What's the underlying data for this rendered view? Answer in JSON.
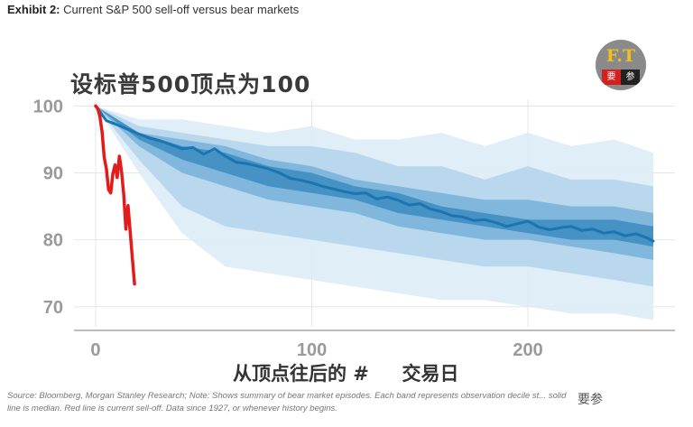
{
  "exhibit": {
    "label": "Exhibit 2:",
    "text": "Current S&P 500 sell-off versus bear markets"
  },
  "overlay": {
    "title_cn": "设标普500顶点为100",
    "xlabel_cn": "从顶点往后的 #     交易日"
  },
  "source_note": "Source: Bloomberg, Morgan Stanley Research; Note: Shows summary of bear market episodes. Each band represents observation decile st... solid line is median. Red line is current sell-off. Data since 1927, or whenever history begins.",
  "logo": {
    "letters": "F.T",
    "left": "要",
    "right": "参",
    "color_red": "#d32020",
    "color_gold": "#f0c020"
  },
  "watermark": "要参",
  "chart_data": {
    "type": "line",
    "title": "",
    "xlabel": "",
    "ylabel": "",
    "xlim": [
      -10,
      268
    ],
    "ylim": [
      67,
      101
    ],
    "xticks": [
      0,
      100,
      200
    ],
    "yticks": [
      70,
      80,
      90,
      100
    ],
    "grid": true,
    "colors": {
      "median": "#1a75b0",
      "band_inner": "#3f8ec2",
      "band_mid": "#7cb4da",
      "band_outer": "#b5d5ec",
      "band_outermost": "#ddecf7",
      "current": "#e21b1b"
    },
    "bands": [
      {
        "name": "decile band 1",
        "x": [
          0,
          20,
          40,
          60,
          80,
          100,
          120,
          140,
          160,
          180,
          200,
          220,
          240,
          258
        ],
        "upper": [
          100,
          98,
          98,
          97,
          96,
          97,
          95,
          95,
          96,
          94,
          96,
          94,
          95,
          93
        ],
        "lower": [
          100,
          90,
          81,
          76,
          75,
          74,
          73,
          72,
          71,
          71,
          70,
          69,
          69,
          68
        ]
      },
      {
        "name": "decile band 2",
        "x": [
          0,
          20,
          40,
          60,
          80,
          100,
          120,
          140,
          160,
          180,
          200,
          220,
          240,
          258
        ],
        "upper": [
          100,
          97,
          96,
          95,
          94,
          94,
          93,
          91,
          91,
          89,
          91,
          89,
          89,
          88
        ],
        "lower": [
          100,
          92,
          85,
          82,
          81,
          80,
          79,
          78,
          77,
          76,
          76,
          75,
          74,
          73
        ]
      },
      {
        "name": "decile band 3",
        "x": [
          0,
          20,
          40,
          60,
          80,
          100,
          120,
          140,
          160,
          180,
          200,
          220,
          240,
          258
        ],
        "upper": [
          100,
          96,
          95,
          94,
          92,
          91,
          89,
          88,
          87,
          86,
          86,
          85,
          85,
          84
        ],
        "lower": [
          100,
          94,
          90,
          88,
          86,
          85,
          84,
          82,
          81,
          80,
          80,
          79,
          78,
          77
        ]
      },
      {
        "name": "decile band 4",
        "x": [
          0,
          20,
          40,
          60,
          80,
          100,
          120,
          140,
          160,
          180,
          200,
          220,
          240,
          258
        ],
        "upper": [
          100,
          96,
          94,
          93,
          91,
          90,
          88,
          87,
          85,
          84,
          83,
          83,
          83,
          82
        ],
        "lower": [
          100,
          95,
          92,
          90,
          88,
          87,
          86,
          84,
          83,
          82,
          81,
          80,
          80,
          79
        ]
      }
    ],
    "series": [
      {
        "name": "median",
        "x": [
          0,
          5,
          10,
          15,
          20,
          25,
          30,
          35,
          40,
          45,
          50,
          55,
          60,
          65,
          70,
          75,
          80,
          85,
          90,
          95,
          100,
          105,
          110,
          115,
          120,
          125,
          130,
          135,
          140,
          145,
          150,
          155,
          160,
          165,
          170,
          175,
          180,
          185,
          190,
          195,
          200,
          205,
          210,
          215,
          220,
          225,
          230,
          235,
          240,
          245,
          250,
          255,
          258
        ],
        "y": [
          100,
          97.8,
          97.2,
          96.5,
          95.8,
          95.2,
          94.8,
          94.2,
          93.6,
          93.8,
          92.8,
          93.6,
          92.5,
          91.6,
          91.4,
          91.0,
          90.6,
          90.0,
          89.2,
          88.9,
          88.5,
          88.0,
          87.6,
          87.2,
          86.9,
          87.0,
          86.1,
          86.4,
          85.9,
          85.2,
          85.4,
          84.6,
          84.2,
          83.6,
          83.4,
          82.9,
          83.0,
          82.6,
          82.0,
          82.4,
          82.8,
          81.9,
          81.5,
          81.8,
          82.0,
          81.4,
          81.6,
          81.0,
          81.2,
          80.6,
          80.9,
          80.3,
          79.8
        ]
      },
      {
        "name": "current",
        "x": [
          0,
          1,
          2,
          3,
          4,
          5,
          6,
          7,
          8,
          9,
          10,
          11,
          12,
          13,
          14,
          15,
          16,
          17,
          18
        ],
        "y": [
          100,
          99.6,
          98.4,
          96.2,
          92.3,
          90.6,
          87.5,
          87.0,
          89.9,
          91.2,
          89.3,
          92.5,
          90.2,
          86.8,
          81.6,
          85.1,
          81.2,
          77.2,
          73.4
        ]
      }
    ]
  }
}
